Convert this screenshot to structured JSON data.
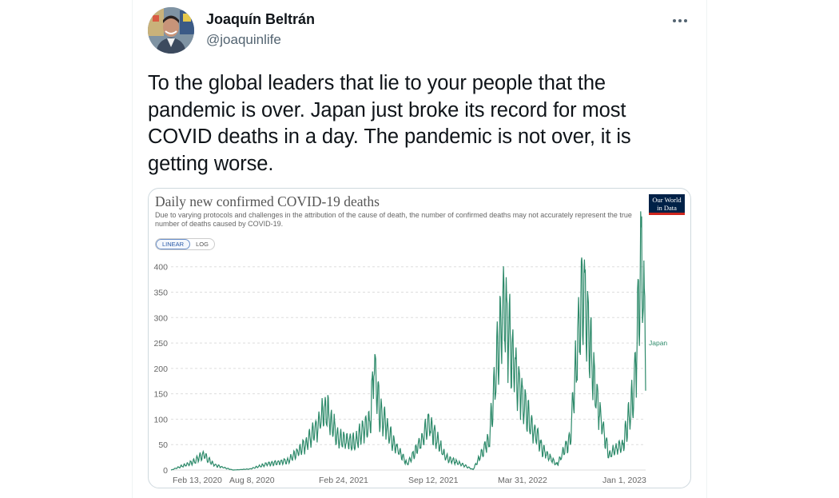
{
  "author": {
    "name": "Joaquín Beltrán",
    "handle": "@joaquinlife"
  },
  "tweet": {
    "text": "To the global leaders that lie to your people that the pandemic is over. Japan just broke its record for most COVID deaths in a day. The pandemic is not over, it is getting worse."
  },
  "icons": {
    "more": "more-horizontal-icon"
  },
  "chart": {
    "title": "Daily new confirmed COVID-19 deaths",
    "subtitle": "Due to varying protocols and challenges in the attribution of the cause of death, the number of confirmed deaths may not accurately represent the true number of deaths caused by COVID-19.",
    "logo": {
      "line1": "Our World",
      "line2": "in Data",
      "bg_color": "#002147",
      "accent_color": "#ce261e"
    },
    "scale_options": [
      "LINEAR",
      "LOG"
    ],
    "scale_selected": "LINEAR"
  },
  "chart_data": {
    "type": "line",
    "title": "Daily new confirmed COVID-19 deaths",
    "xlabel": "",
    "ylabel": "",
    "ylim": [
      0,
      420
    ],
    "yticks": [
      0,
      50,
      100,
      150,
      200,
      250,
      300,
      350,
      400
    ],
    "xtick_labels": [
      "Feb 13, 2020",
      "Aug 8, 2020",
      "Feb 24, 2021",
      "Sep 12, 2021",
      "Mar 31, 2022",
      "Jan 1, 2023"
    ],
    "grid": true,
    "series": [
      {
        "name": "Japan",
        "color": "#2d8a6a",
        "x": [
          "2020-02-13",
          "2020-04-01",
          "2020-04-25",
          "2020-05-20",
          "2020-07-01",
          "2020-08-08",
          "2020-09-15",
          "2020-11-01",
          "2020-12-10",
          "2021-01-10",
          "2021-01-25",
          "2021-02-24",
          "2021-04-01",
          "2021-05-05",
          "2021-05-12",
          "2021-05-25",
          "2021-06-20",
          "2021-07-25",
          "2021-08-25",
          "2021-09-12",
          "2021-10-20",
          "2021-12-20",
          "2022-01-25",
          "2022-02-15",
          "2022-02-24",
          "2022-03-31",
          "2022-04-25",
          "2022-05-25",
          "2022-06-25",
          "2022-07-25",
          "2022-08-15",
          "2022-08-25",
          "2022-09-20",
          "2022-10-20",
          "2022-11-20",
          "2022-12-15",
          "2023-01-01",
          "2023-01-10"
        ],
        "y": [
          0,
          15,
          30,
          10,
          0,
          2,
          12,
          18,
          50,
          95,
          120,
          60,
          55,
          100,
          215,
          120,
          60,
          12,
          55,
          90,
          25,
          1,
          60,
          250,
          325,
          170,
          95,
          40,
          10,
          60,
          300,
          350,
          150,
          30,
          50,
          150,
          420,
          250
        ]
      }
    ]
  }
}
